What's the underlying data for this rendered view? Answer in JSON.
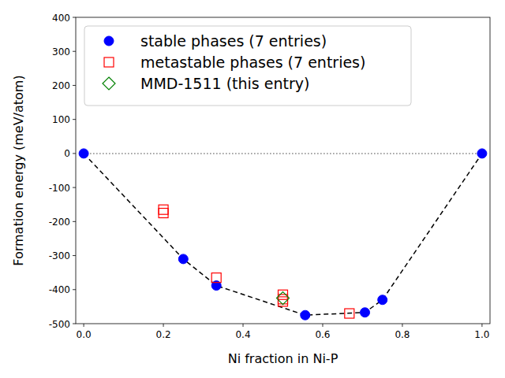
{
  "chart_data": {
    "type": "scatter",
    "x_label": "Ni fraction in Ni-P",
    "y_label": "Formation energy (meV/atom)",
    "xlim": [
      -0.02,
      1.02
    ],
    "ylim": [
      -500,
      400
    ],
    "xticks": [
      {
        "value": 0,
        "label": "0.0"
      },
      {
        "value": 0.2,
        "label": "0.2"
      },
      {
        "value": 0.4,
        "label": "0.4"
      },
      {
        "value": 0.6,
        "label": "0.6"
      },
      {
        "value": 0.8,
        "label": "0.8"
      },
      {
        "value": 1,
        "label": "1.0"
      }
    ],
    "yticks": [
      -500,
      -400,
      -300,
      -200,
      -100,
      0,
      100,
      200,
      300,
      400
    ],
    "grid": false,
    "legend": "upper left",
    "series": [
      {
        "name": "stable phases (7 entries)",
        "type": "scatter",
        "marker": "circle",
        "color": "#0000ff",
        "x": [
          0,
          0.25,
          0.333,
          0.556,
          0.706,
          0.75,
          1
        ],
        "values": [
          0,
          -310,
          -388,
          -475,
          -467,
          -430,
          0
        ]
      },
      {
        "name": "metastable phases (7 entries)",
        "type": "scatter",
        "marker": "square",
        "color": "#ff0000",
        "x": [
          0.2,
          0.2,
          0.333,
          0.5,
          0.5,
          0.5,
          0.667
        ],
        "values": [
          -165,
          -175,
          -365,
          -415,
          -428,
          -435,
          -470
        ]
      },
      {
        "name": "MMD-1511 (this entry)",
        "type": "scatter",
        "marker": "diamond",
        "color": "#008000",
        "x": [
          0.5
        ],
        "values": [
          -425
        ]
      },
      {
        "type": "line",
        "line_style": "dashed",
        "color": "#000000",
        "x": [
          0,
          0.25,
          0.333,
          0.556,
          0.706,
          0.75,
          1
        ],
        "values": [
          0,
          -310,
          -388,
          -475,
          -467,
          -430,
          0
        ]
      },
      {
        "type": "line",
        "line_style": "dotted",
        "color": "#808080",
        "x": [
          0,
          1
        ],
        "values": [
          0,
          0
        ]
      }
    ]
  }
}
